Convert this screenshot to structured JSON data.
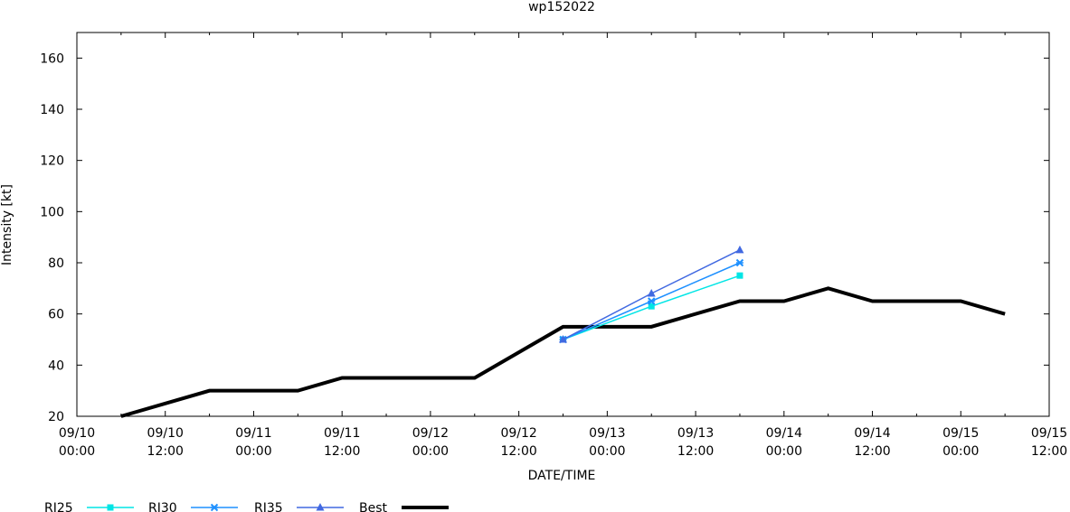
{
  "chart_data": {
    "type": "line",
    "title": "wp152022",
    "xlabel": "DATE/TIME",
    "ylabel": "Intensity [kt]",
    "xlim_hours": [
      0,
      132
    ],
    "ylim": [
      20,
      170
    ],
    "y_ticks": [
      20,
      40,
      60,
      80,
      100,
      120,
      140,
      160
    ],
    "x_tick_hours": [
      0,
      12,
      24,
      36,
      48,
      60,
      72,
      84,
      96,
      108,
      120,
      132
    ],
    "x_tick_labels": [
      [
        "09/10",
        "00:00"
      ],
      [
        "09/10",
        "12:00"
      ],
      [
        "09/11",
        "00:00"
      ],
      [
        "09/11",
        "12:00"
      ],
      [
        "09/12",
        "00:00"
      ],
      [
        "09/12",
        "12:00"
      ],
      [
        "09/13",
        "00:00"
      ],
      [
        "09/13",
        "12:00"
      ],
      [
        "09/14",
        "00:00"
      ],
      [
        "09/14",
        "12:00"
      ],
      [
        "09/15",
        "00:00"
      ],
      [
        "09/15",
        "12:00"
      ]
    ],
    "grid": false,
    "legend_position": "bottom",
    "series": [
      {
        "name": "RI25",
        "color": "#00e5e5",
        "marker": "square",
        "x": [
          66,
          78,
          90
        ],
        "y": [
          50,
          63,
          75
        ]
      },
      {
        "name": "RI30",
        "color": "#1e90ff",
        "marker": "x",
        "x": [
          66,
          78,
          90
        ],
        "y": [
          50,
          65,
          80
        ]
      },
      {
        "name": "RI35",
        "color": "#4169e1",
        "marker": "triangle",
        "x": [
          66,
          78,
          90
        ],
        "y": [
          50,
          68,
          85
        ]
      },
      {
        "name": "Best",
        "color": "#000000",
        "marker": "none",
        "x": [
          6,
          18,
          30,
          36,
          54,
          66,
          78,
          90,
          96,
          102,
          108,
          120,
          126
        ],
        "y": [
          20,
          30,
          30,
          35,
          35,
          55,
          55,
          65,
          65,
          70,
          65,
          65,
          60
        ]
      }
    ]
  }
}
